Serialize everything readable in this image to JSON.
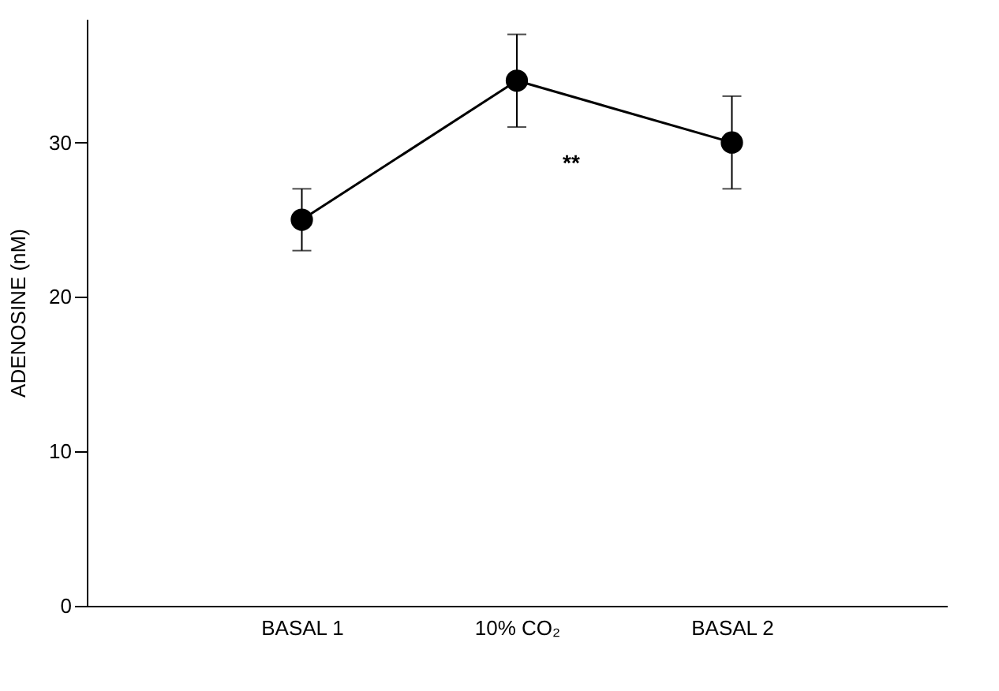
{
  "chart_data": {
    "type": "line",
    "ylabel": "ADENOSINE (nM)",
    "categories": [
      "BASAL 1",
      "10% CO₂",
      "BASAL 2"
    ],
    "series": [
      {
        "color": "#000000",
        "values": [
          25,
          34,
          30
        ],
        "errors": [
          2,
          3,
          3
        ]
      }
    ],
    "ylim": [
      0,
      38
    ],
    "yticks": [
      0,
      10,
      20,
      30
    ],
    "marker": "circle",
    "line_style": "solid",
    "grid": false,
    "annotations": [
      "**"
    ]
  }
}
